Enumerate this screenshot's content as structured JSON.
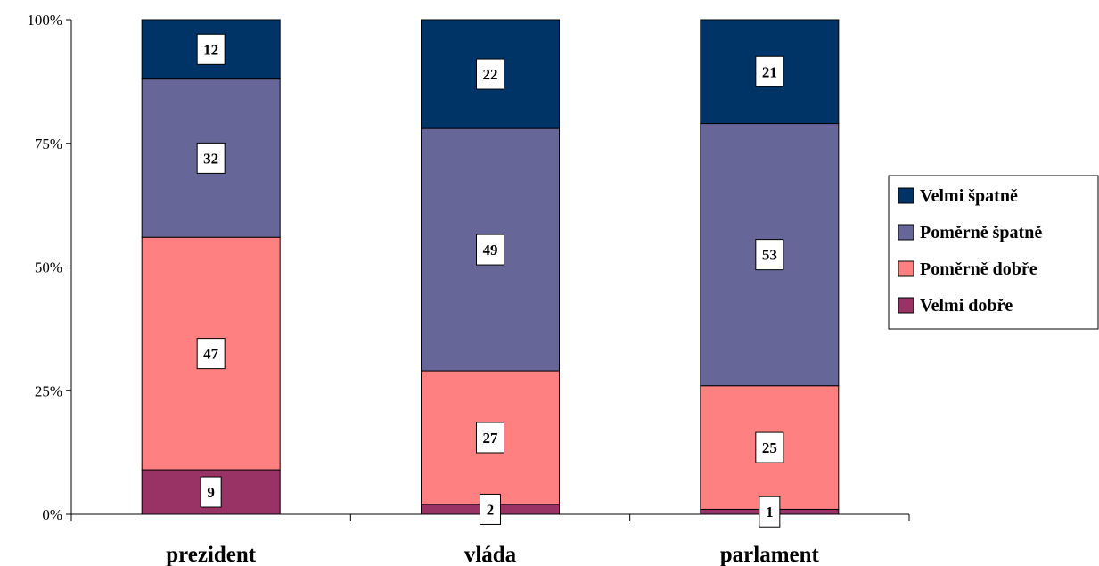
{
  "chart_data": {
    "type": "bar",
    "stacked": true,
    "normalized": true,
    "categories": [
      "prezident",
      "vláda",
      "parlament"
    ],
    "series": [
      {
        "name": "Velmi dobře",
        "color": "#993366",
        "values": [
          9,
          2,
          1
        ]
      },
      {
        "name": "Poměrně dobře",
        "color": "#FF8080",
        "values": [
          47,
          27,
          25
        ]
      },
      {
        "name": "Poměrně špatně",
        "color": "#666699",
        "values": [
          32,
          49,
          53
        ]
      },
      {
        "name": "Velmi špatně",
        "color": "#003366",
        "values": [
          12,
          22,
          21
        ]
      }
    ],
    "ylim": [
      0,
      100
    ],
    "yticks": [
      "0%",
      "25%",
      "50%",
      "75%",
      "100%"
    ],
    "legend_order": [
      "Velmi špatně",
      "Poměrně špatně",
      "Poměrně dobře",
      "Velmi dobře"
    ],
    "legend_position": "right",
    "grid": false
  }
}
